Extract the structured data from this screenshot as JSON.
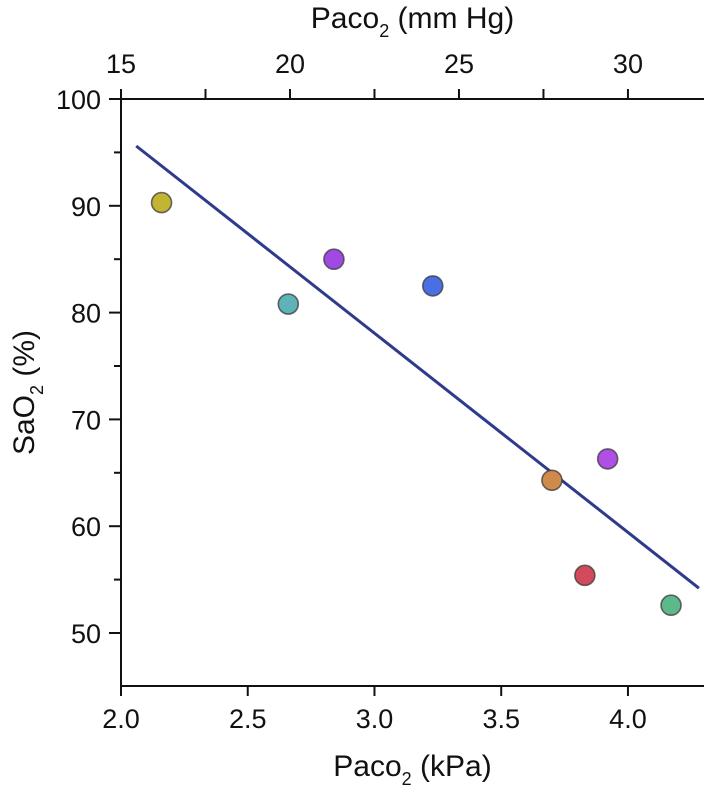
{
  "chart_data": {
    "type": "scatter",
    "title": "",
    "xlabel": {
      "prefix": "Paco",
      "sub": "2",
      "suffix": " (kPa)"
    },
    "x2label": {
      "prefix": "Paco",
      "sub": "2",
      "suffix": " (mm Hg)"
    },
    "ylabel": {
      "prefix": "SaO",
      "sub": "2",
      "suffix": " (%)"
    },
    "xlim": [
      2.0,
      4.3
    ],
    "ylim": [
      45,
      100
    ],
    "x2lim": [
      15,
      32.25
    ],
    "x_ticks": [
      {
        "value": 2.0,
        "label": "2.0"
      },
      {
        "value": 2.5,
        "label": "2.5"
      },
      {
        "value": 3.0,
        "label": "3.0"
      },
      {
        "value": 3.5,
        "label": "3.5"
      },
      {
        "value": 4.0,
        "label": "4.0"
      }
    ],
    "x2_ticks": [
      {
        "value": 15,
        "label": "15"
      },
      {
        "value": 20,
        "label": "20"
      },
      {
        "value": 25,
        "label": "25"
      },
      {
        "value": 30,
        "label": "30"
      }
    ],
    "x2_minor_ticks": [
      17.5,
      22.5,
      27.5
    ],
    "y_ticks": [
      {
        "value": 50,
        "label": "50"
      },
      {
        "value": 60,
        "label": "60"
      },
      {
        "value": 70,
        "label": "70"
      },
      {
        "value": 80,
        "label": "80"
      },
      {
        "value": 90,
        "label": "90"
      },
      {
        "value": 100,
        "label": "100"
      }
    ],
    "y_minor_ticks": [
      55,
      65,
      75,
      85,
      95
    ],
    "points": [
      {
        "x": 2.16,
        "y": 90.3,
        "color": "#c2b533"
      },
      {
        "x": 2.66,
        "y": 80.8,
        "color": "#5fb3b8"
      },
      {
        "x": 2.84,
        "y": 85.0,
        "color": "#a14ae3"
      },
      {
        "x": 3.23,
        "y": 82.5,
        "color": "#4a6fe3"
      },
      {
        "x": 3.7,
        "y": 64.3,
        "color": "#d08a4a"
      },
      {
        "x": 3.92,
        "y": 66.3,
        "color": "#b04ee5"
      },
      {
        "x": 3.83,
        "y": 55.4,
        "color": "#d24a5c"
      },
      {
        "x": 4.17,
        "y": 52.6,
        "color": "#5db88a"
      }
    ],
    "fit_line": {
      "x": [
        2.06,
        4.28
      ],
      "y": [
        95.6,
        54.2
      ],
      "color": "#2e3a8c"
    },
    "grid": false,
    "legend": "none"
  }
}
